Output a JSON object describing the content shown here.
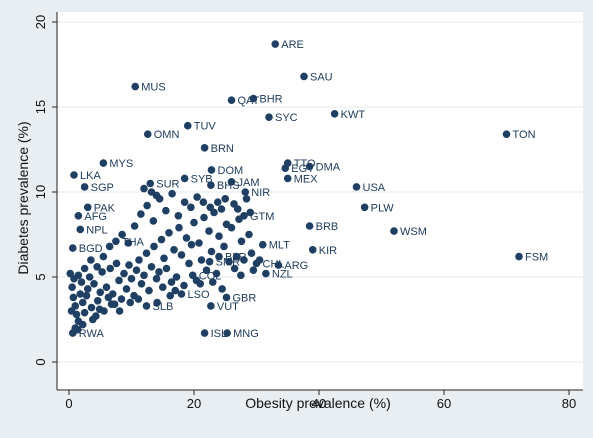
{
  "chart_data": {
    "type": "scatter",
    "title": "",
    "xlabel": "Obesity prevalence (%)",
    "ylabel": "Diabetes prevalence (%)",
    "xlim": [
      0,
      80
    ],
    "ylim": [
      0,
      20
    ],
    "x_ticks": [
      0,
      20,
      40,
      60,
      80
    ],
    "y_ticks": [
      0,
      5,
      10,
      15,
      20
    ],
    "grid": "y-major",
    "legend": "none",
    "colors": {
      "point": "#1f3f63",
      "label": "#1c3a5c",
      "background": "#e9eef2",
      "plot_area": "#ffffff"
    },
    "labeled_points": [
      {
        "label": "ARE",
        "x": 33.0,
        "y": 18.7
      },
      {
        "label": "SAU",
        "x": 37.6,
        "y": 16.8
      },
      {
        "label": "MUS",
        "x": 10.6,
        "y": 16.2
      },
      {
        "label": "QAT",
        "x": 26.0,
        "y": 15.4
      },
      {
        "label": "BHR",
        "x": 29.5,
        "y": 15.5
      },
      {
        "label": "KWT",
        "x": 42.5,
        "y": 14.6
      },
      {
        "label": "SYC",
        "x": 32.0,
        "y": 14.4
      },
      {
        "label": "TUV",
        "x": 19.0,
        "y": 13.9
      },
      {
        "label": "OMN",
        "x": 12.6,
        "y": 13.4
      },
      {
        "label": "TON",
        "x": 70.0,
        "y": 13.4
      },
      {
        "label": "BRN",
        "x": 21.7,
        "y": 12.6
      },
      {
        "label": "MYS",
        "x": 5.5,
        "y": 11.7
      },
      {
        "label": "TTO",
        "x": 35.0,
        "y": 11.7
      },
      {
        "label": "DMA",
        "x": 38.5,
        "y": 11.5
      },
      {
        "label": "EGY",
        "x": 34.6,
        "y": 11.4
      },
      {
        "label": "DOM",
        "x": 22.8,
        "y": 11.3
      },
      {
        "label": "LKA",
        "x": 0.8,
        "y": 11.0
      },
      {
        "label": "MEX",
        "x": 35.0,
        "y": 10.8
      },
      {
        "label": "SYB",
        "x": 18.5,
        "y": 10.8
      },
      {
        "label": "JAM",
        "x": 26.0,
        "y": 10.6
      },
      {
        "label": "SUR",
        "x": 13.0,
        "y": 10.5
      },
      {
        "label": "BHS",
        "x": 22.7,
        "y": 10.4
      },
      {
        "label": "USA",
        "x": 46.0,
        "y": 10.3
      },
      {
        "label": "SGP",
        "x": 2.5,
        "y": 10.3
      },
      {
        "label": "NIR",
        "x": 28.2,
        "y": 10.0
      },
      {
        "label": "PLW",
        "x": 47.3,
        "y": 9.1
      },
      {
        "label": "PAK",
        "x": 3.0,
        "y": 9.1
      },
      {
        "label": "AFG",
        "x": 1.5,
        "y": 8.6
      },
      {
        "label": "GTM",
        "x": 28.0,
        "y": 8.6
      },
      {
        "label": "BRB",
        "x": 38.5,
        "y": 8.0
      },
      {
        "label": "NPL",
        "x": 1.8,
        "y": 7.8
      },
      {
        "label": "WSM",
        "x": 52.0,
        "y": 7.7
      },
      {
        "label": "THA",
        "x": 7.5,
        "y": 7.1
      },
      {
        "label": "MLT",
        "x": 31.0,
        "y": 6.9
      },
      {
        "label": "BGD",
        "x": 0.6,
        "y": 6.7
      },
      {
        "label": "KIR",
        "x": 39.0,
        "y": 6.6
      },
      {
        "label": "BLR",
        "x": 24.0,
        "y": 6.2
      },
      {
        "label": "FSM",
        "x": 72.0,
        "y": 6.2
      },
      {
        "label": "ARG",
        "x": 33.5,
        "y": 5.7
      },
      {
        "label": "CHL",
        "x": 30.0,
        "y": 5.8
      },
      {
        "label": "SMR",
        "x": 22.5,
        "y": 5.9
      },
      {
        "label": "NZL",
        "x": 31.5,
        "y": 5.2
      },
      {
        "label": "COL",
        "x": 19.8,
        "y": 5.1
      },
      {
        "label": "LSO",
        "x": 18.0,
        "y": 4.0
      },
      {
        "label": "GBR",
        "x": 25.2,
        "y": 3.8
      },
      {
        "label": "VUT",
        "x": 22.7,
        "y": 3.3
      },
      {
        "label": "SLB",
        "x": 12.4,
        "y": 3.3
      },
      {
        "label": "ISL",
        "x": 21.7,
        "y": 1.7
      },
      {
        "label": "MNG",
        "x": 25.3,
        "y": 1.7
      },
      {
        "label": "RWA",
        "x": 0.6,
        "y": 1.7
      }
    ],
    "unlabeled_points": [
      [
        0.2,
        5.2
      ],
      [
        0.5,
        4.4
      ],
      [
        0.7,
        3.8
      ],
      [
        1.0,
        3.3
      ],
      [
        1.2,
        2.8
      ],
      [
        1.5,
        2.4
      ],
      [
        1.8,
        4.0
      ],
      [
        2.0,
        4.7
      ],
      [
        2.2,
        3.5
      ],
      [
        2.5,
        2.9
      ],
      [
        2.8,
        3.9
      ],
      [
        3.0,
        4.3
      ],
      [
        3.3,
        5.0
      ],
      [
        3.6,
        3.2
      ],
      [
        4.0,
        4.6
      ],
      [
        4.3,
        2.7
      ],
      [
        4.6,
        3.6
      ],
      [
        5.0,
        4.1
      ],
      [
        5.3,
        5.3
      ],
      [
        5.6,
        3.0
      ],
      [
        6.0,
        4.4
      ],
      [
        6.3,
        3.8
      ],
      [
        6.6,
        5.5
      ],
      [
        7.0,
        4.0
      ],
      [
        7.3,
        3.4
      ],
      [
        7.6,
        5.8
      ],
      [
        8.0,
        4.8
      ],
      [
        8.4,
        3.7
      ],
      [
        8.8,
        5.2
      ],
      [
        9.2,
        4.3
      ],
      [
        9.6,
        5.7
      ],
      [
        10.0,
        4.9
      ],
      [
        10.4,
        3.9
      ],
      [
        10.8,
        5.4
      ],
      [
        11.2,
        6.0
      ],
      [
        11.6,
        4.6
      ],
      [
        12.0,
        5.1
      ],
      [
        12.4,
        6.4
      ],
      [
        12.8,
        4.2
      ],
      [
        13.2,
        5.6
      ],
      [
        13.6,
        6.8
      ],
      [
        14.0,
        4.9
      ],
      [
        14.4,
        5.3
      ],
      [
        14.8,
        7.2
      ],
      [
        15.2,
        6.1
      ],
      [
        15.6,
        5.5
      ],
      [
        16.0,
        7.6
      ],
      [
        16.4,
        4.7
      ],
      [
        16.8,
        6.6
      ],
      [
        17.2,
        5.0
      ],
      [
        17.6,
        7.9
      ],
      [
        18.0,
        6.3
      ],
      [
        18.4,
        4.5
      ],
      [
        18.8,
        7.3
      ],
      [
        19.2,
        5.8
      ],
      [
        19.6,
        6.9
      ],
      [
        20.0,
        8.2
      ],
      [
        20.4,
        4.8
      ],
      [
        20.8,
        7.0
      ],
      [
        21.2,
        6.0
      ],
      [
        21.6,
        8.5
      ],
      [
        22.0,
        5.4
      ],
      [
        22.4,
        7.7
      ],
      [
        22.8,
        6.5
      ],
      [
        23.2,
        8.8
      ],
      [
        23.6,
        5.2
      ],
      [
        24.0,
        7.4
      ],
      [
        24.4,
        9.0
      ],
      [
        24.8,
        6.8
      ],
      [
        25.2,
        8.1
      ],
      [
        25.6,
        5.9
      ],
      [
        26.0,
        7.9
      ],
      [
        26.4,
        9.3
      ],
      [
        26.8,
        6.2
      ],
      [
        27.2,
        8.4
      ],
      [
        27.6,
        7.1
      ],
      [
        28.0,
        6.0
      ],
      [
        28.4,
        9.6
      ],
      [
        28.8,
        7.5
      ],
      [
        29.2,
        6.4
      ],
      [
        10.5,
        8.0
      ],
      [
        11.5,
        8.7
      ],
      [
        12.5,
        9.2
      ],
      [
        13.5,
        8.3
      ],
      [
        14.5,
        9.6
      ],
      [
        15.5,
        8.9
      ],
      [
        16.5,
        9.9
      ],
      [
        17.5,
        8.6
      ],
      [
        18.5,
        9.4
      ],
      [
        19.5,
        9.1
      ],
      [
        8.5,
        7.5
      ],
      [
        9.5,
        7.0
      ],
      [
        6.5,
        6.8
      ],
      [
        5.5,
        6.2
      ],
      [
        4.5,
        5.6
      ],
      [
        3.5,
        6.0
      ],
      [
        2.5,
        5.5
      ],
      [
        1.5,
        5.1
      ],
      [
        0.8,
        4.9
      ],
      [
        0.4,
        3.0
      ],
      [
        1.0,
        2.0
      ],
      [
        1.4,
        1.9
      ],
      [
        2.2,
        2.2
      ],
      [
        3.8,
        2.5
      ],
      [
        4.9,
        3.1
      ],
      [
        6.8,
        3.4
      ],
      [
        8.1,
        3.0
      ],
      [
        9.8,
        3.5
      ],
      [
        11.1,
        3.7
      ],
      [
        14.1,
        3.5
      ],
      [
        15.0,
        4.4
      ],
      [
        16.2,
        3.9
      ],
      [
        17.0,
        4.2
      ],
      [
        21.0,
        4.6
      ],
      [
        23.0,
        4.7
      ],
      [
        24.5,
        4.3
      ],
      [
        26.5,
        5.5
      ],
      [
        27.5,
        5.1
      ],
      [
        29.5,
        5.4
      ],
      [
        30.5,
        6.0
      ],
      [
        12.0,
        10.2
      ],
      [
        13.2,
        10.0
      ],
      [
        14.0,
        9.8
      ],
      [
        20.5,
        9.7
      ],
      [
        21.5,
        9.4
      ],
      [
        22.6,
        9.1
      ],
      [
        23.8,
        9.4
      ],
      [
        25.0,
        9.6
      ],
      [
        27.0,
        9.0
      ],
      [
        29.0,
        8.8
      ]
    ]
  }
}
